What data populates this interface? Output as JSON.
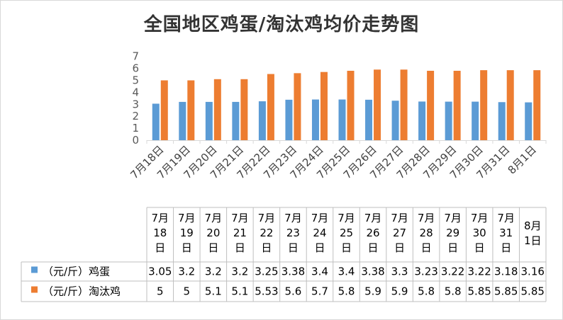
{
  "chart_data": {
    "type": "bar",
    "title": "全国地区鸡蛋/淘汰鸡均价走势图",
    "categories": [
      "7月18日",
      "7月19日",
      "7月20日",
      "7月21日",
      "7月22日",
      "7月23日",
      "7月24日",
      "7月25日",
      "7月26日",
      "7月27日",
      "7月28日",
      "7月29日",
      "7月30日",
      "7月31日",
      "8月1日"
    ],
    "table_headers": [
      [
        "7月",
        "18",
        "日"
      ],
      [
        "7月",
        "19",
        "日"
      ],
      [
        "7月",
        "20",
        "日"
      ],
      [
        "7月",
        "21",
        "日"
      ],
      [
        "7月",
        "22",
        "日"
      ],
      [
        "7月",
        "23",
        "日"
      ],
      [
        "7月",
        "24",
        "日"
      ],
      [
        "7月",
        "25",
        "日"
      ],
      [
        "7月",
        "26",
        "日"
      ],
      [
        "7月",
        "27",
        "日"
      ],
      [
        "7月",
        "28",
        "日"
      ],
      [
        "7月",
        "29",
        "日"
      ],
      [
        "7月",
        "30",
        "日"
      ],
      [
        "7月",
        "31",
        "日"
      ],
      [
        "8月",
        "1日"
      ]
    ],
    "series": [
      {
        "name": "（元/斤）鸡蛋",
        "color": "#5b9bd5",
        "values": [
          3.05,
          3.2,
          3.2,
          3.2,
          3.25,
          3.38,
          3.4,
          3.4,
          3.38,
          3.3,
          3.23,
          3.22,
          3.22,
          3.18,
          3.16
        ],
        "labels": [
          "3.05",
          "3.2",
          "3.2",
          "3.2",
          "3.25",
          "3.38",
          "3.4",
          "3.4",
          "3.38",
          "3.3",
          "3.23",
          "3.22",
          "3.22",
          "3.18",
          "3.16"
        ]
      },
      {
        "name": "（元/斤）淘汰鸡",
        "color": "#ed7d31",
        "values": [
          5,
          5,
          5.1,
          5.1,
          5.53,
          5.6,
          5.7,
          5.8,
          5.9,
          5.9,
          5.8,
          5.8,
          5.85,
          5.85,
          5.85
        ],
        "labels": [
          "5",
          "5",
          "5.1",
          "5.1",
          "5.53",
          "5.6",
          "5.7",
          "5.8",
          "5.9",
          "5.9",
          "5.8",
          "5.8",
          "5.85",
          "5.85",
          "5.85"
        ]
      }
    ],
    "y_ticks": [
      "0",
      "1",
      "2",
      "3",
      "4",
      "5",
      "6",
      "7"
    ],
    "ylim": [
      0,
      7
    ],
    "grid": false,
    "legend": "data-table"
  }
}
